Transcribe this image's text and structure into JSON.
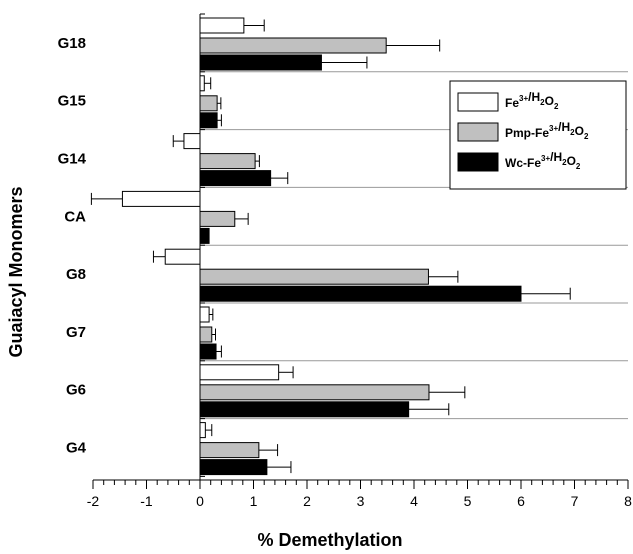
{
  "chart_data": {
    "type": "bar",
    "orientation": "horizontal",
    "xlabel": "% Demethylation",
    "ylabel": "Guaiacyl Monomers",
    "xlim": [
      -2,
      8
    ],
    "xticks": [
      "-2",
      "-1",
      "0",
      "1",
      "2",
      "3",
      "4",
      "5",
      "6",
      "7",
      "8"
    ],
    "legend_position": "top-right",
    "categories": [
      "G18",
      "G15",
      "G14",
      "CA",
      "G8",
      "G7",
      "G6",
      "G4"
    ],
    "series": [
      {
        "name": "Fe3+/H2O2",
        "label_parts": [
          [
            "Fe",
            ""
          ],
          [
            "3+",
            "sup"
          ],
          [
            "/H",
            ""
          ],
          [
            "2",
            "sub"
          ],
          [
            "O",
            ""
          ],
          [
            "2",
            "sub"
          ]
        ],
        "color": "#ffffff",
        "values": [
          0.82,
          0.08,
          -0.3,
          -1.45,
          -0.65,
          0.17,
          1.47,
          0.1
        ],
        "errors": [
          0.38,
          0.12,
          0.2,
          0.58,
          0.22,
          0.07,
          0.27,
          0.12
        ]
      },
      {
        "name": "Pmp-Fe3+/H2O2",
        "label_parts": [
          [
            "Pmp-Fe",
            ""
          ],
          [
            "3+",
            "sup"
          ],
          [
            "/H",
            ""
          ],
          [
            "2",
            "sub"
          ],
          [
            "O",
            ""
          ],
          [
            "2",
            "sub"
          ]
        ],
        "color": "#c0c0c0",
        "values": [
          3.48,
          0.32,
          1.03,
          0.65,
          4.27,
          0.22,
          4.28,
          1.1
        ],
        "errors": [
          1.0,
          0.07,
          0.08,
          0.25,
          0.55,
          0.07,
          0.67,
          0.35
        ]
      },
      {
        "name": "Wc-Fe3+/H2O2",
        "label_parts": [
          [
            "Wc-Fe",
            ""
          ],
          [
            "3+",
            "sup"
          ],
          [
            "/H",
            ""
          ],
          [
            "2",
            "sub"
          ],
          [
            "O",
            ""
          ],
          [
            "2",
            "sub"
          ]
        ],
        "color": "#000000",
        "values": [
          2.27,
          0.32,
          1.32,
          0.17,
          6.0,
          0.3,
          3.9,
          1.25
        ],
        "errors": [
          0.85,
          0.08,
          0.32,
          0.0,
          0.92,
          0.1,
          0.75,
          0.45
        ]
      }
    ]
  }
}
